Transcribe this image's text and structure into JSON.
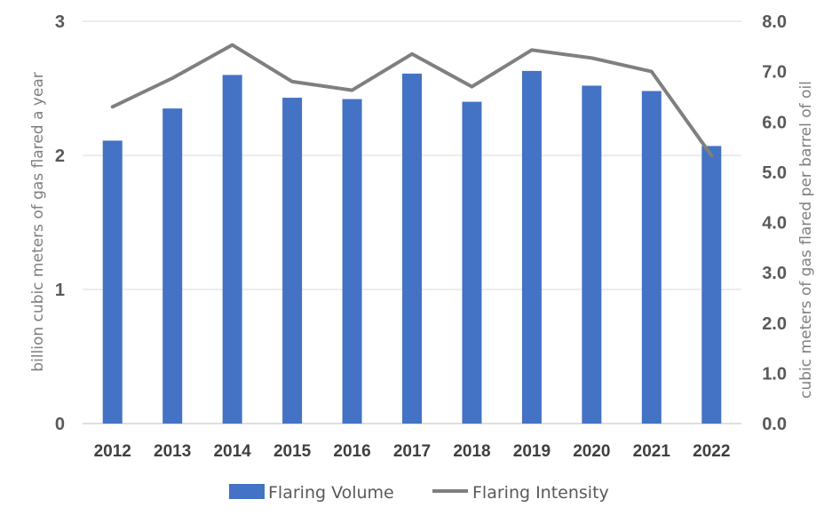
{
  "chart_data": {
    "type": "bar",
    "categories": [
      "2012",
      "2013",
      "2014",
      "2015",
      "2016",
      "2017",
      "2018",
      "2019",
      "2020",
      "2021",
      "2022"
    ],
    "series": [
      {
        "name": "Flaring Volume",
        "type": "bar",
        "axis": "left",
        "color": "#4472C4",
        "values": [
          2.11,
          2.35,
          2.6,
          2.43,
          2.42,
          2.61,
          2.4,
          2.63,
          2.52,
          2.48,
          2.07
        ]
      },
      {
        "name": "Flaring Intensity",
        "type": "line",
        "axis": "right",
        "color": "#7F7F7F",
        "values": [
          6.3,
          6.87,
          7.53,
          6.8,
          6.63,
          7.35,
          6.7,
          7.43,
          7.27,
          7.0,
          5.33
        ]
      }
    ],
    "ylabel": "billion cubic meters of gas flared a year",
    "y2label": "cubic meters of gas flared per barrel of oil",
    "ylim": [
      0,
      3
    ],
    "y2lim": [
      0,
      8
    ],
    "yticks": [
      "0",
      "1",
      "2",
      "3"
    ],
    "y2ticks": [
      "0.0",
      "1.0",
      "2.0",
      "3.0",
      "4.0",
      "5.0",
      "6.0",
      "7.0",
      "8.0"
    ],
    "grid": true,
    "legend_position": "bottom"
  }
}
